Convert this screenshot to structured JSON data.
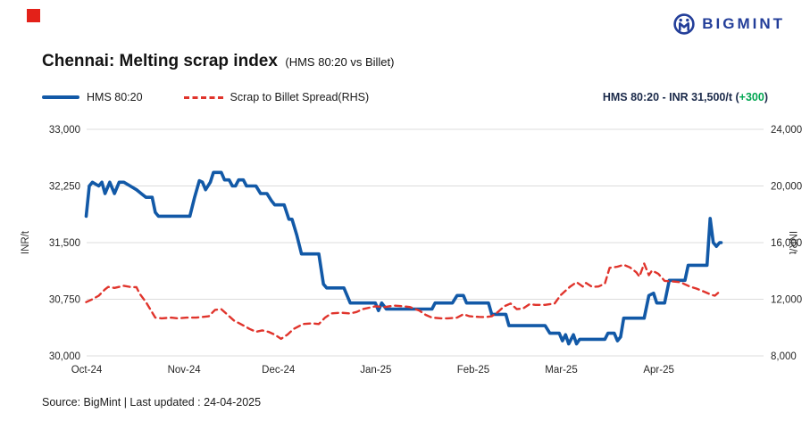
{
  "header": {
    "logo_text": "BIGMINT"
  },
  "title": {
    "main": "Chennai: Melting scrap index",
    "sub": "(HMS 80:20 vs Billet)"
  },
  "legend": {
    "items": [
      {
        "label": "HMS 80:20",
        "style": "solid",
        "color": "#1259a7"
      },
      {
        "label": "Scrap to Billet Spread(RHS)",
        "style": "dashed",
        "color": "#e0342c"
      }
    ]
  },
  "annotation": {
    "before": "HMS 80:20 - INR 31,500/t (",
    "change": "+300",
    "after": ")",
    "change_color": "#00a651"
  },
  "footer": {
    "source_line": "Source: BigMint | Last updated : 24-04-2025"
  },
  "colors": {
    "hms_line": "#1259a7",
    "spread_line": "#e0342c",
    "gridline": "#dcdcdc",
    "logo_navy": "#233e99",
    "positive_green": "#00a651",
    "indicator_red": "#e32119"
  },
  "chart_data": {
    "type": "line",
    "title": "Chennai: Melting scrap index (HMS 80:20 vs Billet)",
    "grid": true,
    "left_axis": {
      "label": "INR/t",
      "min": 30000,
      "max": 33000,
      "tick_labels": [
        "33,000",
        "32,250",
        "31,500",
        "30,750",
        "30,000"
      ],
      "tick_values": [
        33000,
        32250,
        31500,
        30750,
        30000
      ]
    },
    "right_axis": {
      "label": "INR/t",
      "min": 8000,
      "max": 24000,
      "tick_labels": [
        "24,000",
        "20,000",
        "16,000",
        "12,000",
        "8,000"
      ],
      "tick_values": [
        24000,
        20000,
        16000,
        12000,
        8000
      ]
    },
    "x_axis": {
      "tick_labels": [
        "Oct-24",
        "Nov-24",
        "Dec-24",
        "Jan-25",
        "Feb-25",
        "Mar-25",
        "Apr-25"
      ],
      "tick_days": [
        0,
        31,
        61,
        92,
        123,
        151,
        182
      ],
      "domain_days": [
        -1,
        214
      ]
    },
    "series": [
      {
        "name": "HMS 80:20",
        "axis": "left",
        "style": "solid",
        "color": "#1259a7",
        "points": [
          [
            -1,
            31850
          ],
          [
            0,
            32250
          ],
          [
            1,
            32300
          ],
          [
            3,
            32250
          ],
          [
            4,
            32300
          ],
          [
            5,
            32150
          ],
          [
            6.5,
            32300
          ],
          [
            8,
            32150
          ],
          [
            9.5,
            32300
          ],
          [
            11,
            32300
          ],
          [
            13,
            32250
          ],
          [
            15,
            32200
          ],
          [
            16.5,
            32150
          ],
          [
            18,
            32100
          ],
          [
            20,
            32100
          ],
          [
            21,
            31900
          ],
          [
            22,
            31850
          ],
          [
            32,
            31850
          ],
          [
            33.5,
            32100
          ],
          [
            35,
            32320
          ],
          [
            36,
            32300
          ],
          [
            37,
            32200
          ],
          [
            38.5,
            32300
          ],
          [
            39.5,
            32430
          ],
          [
            42,
            32430
          ],
          [
            43,
            32330
          ],
          [
            44.5,
            32330
          ],
          [
            45.5,
            32250
          ],
          [
            46.5,
            32250
          ],
          [
            47.5,
            32330
          ],
          [
            49,
            32330
          ],
          [
            50,
            32250
          ],
          [
            53,
            32250
          ],
          [
            54.5,
            32150
          ],
          [
            56.5,
            32150
          ],
          [
            58,
            32050
          ],
          [
            59,
            32000
          ],
          [
            62,
            32000
          ],
          [
            63.5,
            31810
          ],
          [
            64.5,
            31810
          ],
          [
            66,
            31600
          ],
          [
            67.5,
            31350
          ],
          [
            73,
            31350
          ],
          [
            74.5,
            30950
          ],
          [
            75.5,
            30900
          ],
          [
            81,
            30900
          ],
          [
            83,
            30700
          ],
          [
            91,
            30700
          ],
          [
            92,
            30600
          ],
          [
            93,
            30700
          ],
          [
            94.5,
            30620
          ],
          [
            109,
            30620
          ],
          [
            110,
            30700
          ],
          [
            115.5,
            30700
          ],
          [
            117,
            30800
          ],
          [
            119,
            30800
          ],
          [
            120,
            30700
          ],
          [
            127,
            30700
          ],
          [
            128,
            30550
          ],
          [
            132.5,
            30550
          ],
          [
            133.5,
            30400
          ],
          [
            145,
            30400
          ],
          [
            146.5,
            30300
          ],
          [
            149.5,
            30300
          ],
          [
            150.5,
            30200
          ],
          [
            151.5,
            30280
          ],
          [
            152.5,
            30160
          ],
          [
            154,
            30280
          ],
          [
            155,
            30160
          ],
          [
            156,
            30220
          ],
          [
            164,
            30220
          ],
          [
            165,
            30300
          ],
          [
            167,
            30300
          ],
          [
            168,
            30200
          ],
          [
            169,
            30250
          ],
          [
            170,
            30500
          ],
          [
            176.5,
            30500
          ],
          [
            178,
            30800
          ],
          [
            179.5,
            30830
          ],
          [
            180.5,
            30700
          ],
          [
            183,
            30700
          ],
          [
            184.5,
            31000
          ],
          [
            189.5,
            31000
          ],
          [
            190.5,
            31200
          ],
          [
            196.5,
            31200
          ],
          [
            197.5,
            31820
          ],
          [
            198.5,
            31500
          ],
          [
            199.5,
            31450
          ],
          [
            200.5,
            31500
          ],
          [
            201,
            31500
          ]
        ]
      },
      {
        "name": "Scrap to Billet Spread(RHS)",
        "axis": "right",
        "style": "dashed",
        "color": "#e0342c",
        "points": [
          [
            -1,
            11800
          ],
          [
            1,
            12000
          ],
          [
            3,
            12250
          ],
          [
            5,
            12700
          ],
          [
            6,
            12870
          ],
          [
            8,
            12800
          ],
          [
            10,
            12900
          ],
          [
            11,
            12950
          ],
          [
            13,
            12870
          ],
          [
            15,
            12850
          ],
          [
            16,
            12400
          ],
          [
            18,
            11800
          ],
          [
            21,
            10700
          ],
          [
            23,
            10650
          ],
          [
            26,
            10700
          ],
          [
            28,
            10650
          ],
          [
            31,
            10700
          ],
          [
            34,
            10700
          ],
          [
            36,
            10750
          ],
          [
            38,
            10800
          ],
          [
            40,
            11250
          ],
          [
            42,
            11300
          ],
          [
            44,
            10900
          ],
          [
            46,
            10500
          ],
          [
            49,
            10150
          ],
          [
            51,
            9900
          ],
          [
            53,
            9700
          ],
          [
            55,
            9800
          ],
          [
            57,
            9700
          ],
          [
            59,
            9500
          ],
          [
            61,
            9200
          ],
          [
            63,
            9500
          ],
          [
            65,
            9900
          ],
          [
            68,
            10250
          ],
          [
            71,
            10300
          ],
          [
            73,
            10250
          ],
          [
            75,
            10700
          ],
          [
            77,
            11000
          ],
          [
            80,
            11050
          ],
          [
            83,
            11000
          ],
          [
            85,
            11100
          ],
          [
            87,
            11300
          ],
          [
            89,
            11400
          ],
          [
            91,
            11500
          ],
          [
            94,
            11450
          ],
          [
            97,
            11550
          ],
          [
            100,
            11500
          ],
          [
            102,
            11450
          ],
          [
            105,
            11200
          ],
          [
            107,
            10900
          ],
          [
            109,
            10700
          ],
          [
            112,
            10650
          ],
          [
            114,
            10650
          ],
          [
            117,
            10700
          ],
          [
            119,
            10940
          ],
          [
            121,
            10800
          ],
          [
            124,
            10750
          ],
          [
            126,
            10740
          ],
          [
            128,
            10800
          ],
          [
            130,
            11100
          ],
          [
            132,
            11500
          ],
          [
            134,
            11700
          ],
          [
            136,
            11300
          ],
          [
            138,
            11350
          ],
          [
            140,
            11650
          ],
          [
            142,
            11600
          ],
          [
            145,
            11600
          ],
          [
            148,
            11700
          ],
          [
            150,
            12300
          ],
          [
            153,
            12900
          ],
          [
            155,
            13200
          ],
          [
            157,
            12900
          ],
          [
            158,
            13150
          ],
          [
            160,
            12870
          ],
          [
            162,
            12900
          ],
          [
            164,
            13100
          ],
          [
            165.5,
            14220
          ],
          [
            168,
            14300
          ],
          [
            170,
            14430
          ],
          [
            172,
            14250
          ],
          [
            174,
            13900
          ],
          [
            175,
            13600
          ],
          [
            176.5,
            14520
          ],
          [
            178,
            13700
          ],
          [
            179,
            14030
          ],
          [
            181,
            13800
          ],
          [
            183,
            13300
          ],
          [
            186,
            13250
          ],
          [
            188,
            13200
          ],
          [
            191,
            12900
          ],
          [
            193,
            12760
          ],
          [
            196,
            12500
          ],
          [
            198,
            12300
          ],
          [
            199,
            12250
          ],
          [
            200.5,
            12550
          ],
          [
            201,
            12520
          ]
        ]
      }
    ]
  }
}
